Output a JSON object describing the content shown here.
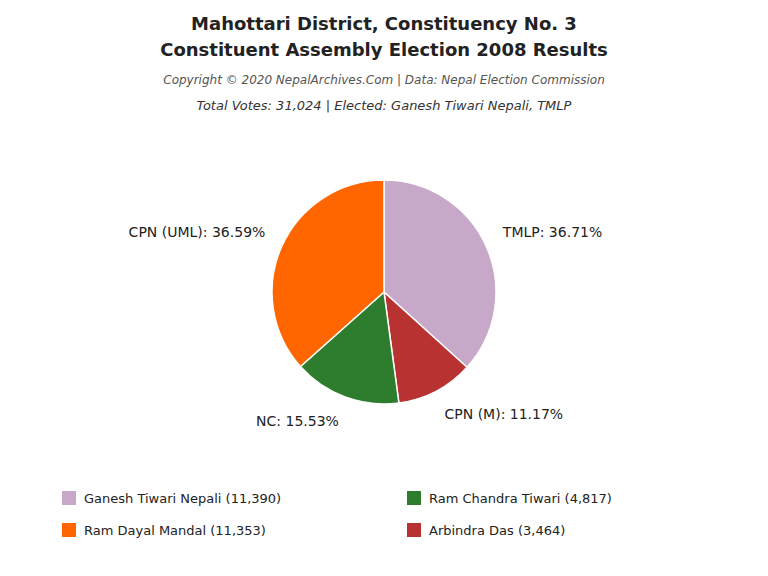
{
  "chart_data": {
    "type": "pie",
    "title": [
      "Mahottari District, Constituency No. 3",
      "Constituent Assembly Election 2008 Results"
    ],
    "annotations": [
      "Copyright © 2020 NepalArchives.Com | Data: Nepal Election Commission"
    ],
    "subtitle": "Total Votes: 31,024 | Elected: Ganesh Tiwari Nepali, TMLP",
    "categories": [
      "TMLP",
      "CPN (M)",
      "NC",
      "CPN (UML)"
    ],
    "values": [
      36.71,
      11.17,
      15.53,
      36.59
    ],
    "value_labels": [
      "TMLP: 36.71%",
      "CPN (M): 11.17%",
      "NC: 15.53%",
      "CPN (UML): 36.59%"
    ],
    "votes": [
      11390,
      3464,
      4817,
      11353
    ],
    "legend_labels": [
      "Ganesh Tiwari Nepali (11,390)",
      "Arbindra Das (3,464)",
      "Ram Chandra Tiwari (4,817)",
      "Ram Dayal Mandal (11,353)"
    ],
    "colors": [
      "#C8A8C8",
      "#B83232",
      "#2E7D2E",
      "#FF6600"
    ],
    "data_labels": true,
    "legend": "bottom"
  }
}
